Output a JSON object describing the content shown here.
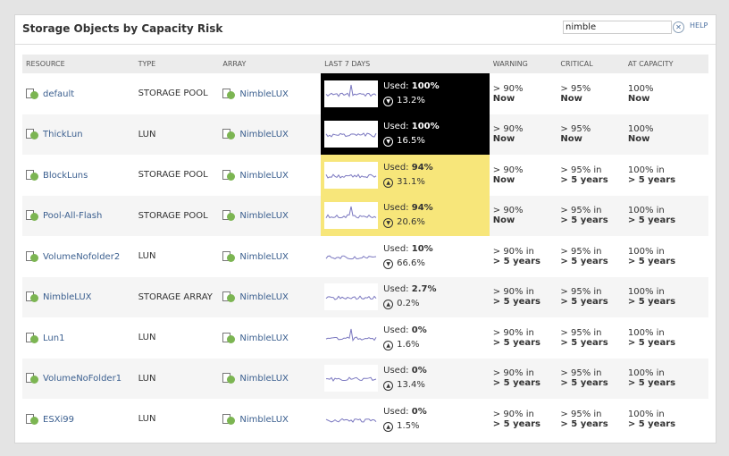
{
  "title": "Storage Objects by Capacity Risk",
  "search": {
    "value": "nimble"
  },
  "help": "HELP",
  "columns": [
    "RESOURCE",
    "TYPE",
    "ARRAY",
    "LAST 7 DAYS",
    "WARNING",
    "CRITICAL",
    "AT CAPACITY"
  ],
  "colors": {
    "critical": "#000000",
    "warning": "#f7e67a",
    "status_up": "#7cb552",
    "link": "#3b5f8f"
  },
  "rows": [
    {
      "resource": "default",
      "icon": "storage-pool-icon",
      "type": "STORAGE POOL",
      "array": "NimbleLUX",
      "used_label": "Used:",
      "used": "100%",
      "trend": "down",
      "change": "13.2%",
      "warning": [
        "> 90%",
        "Now"
      ],
      "critical": [
        "> 95%",
        "Now"
      ],
      "capacity": [
        "100%",
        "Now"
      ],
      "level": "critical"
    },
    {
      "resource": "ThickLun",
      "icon": "lun-icon",
      "type": "LUN",
      "array": "NimbleLUX",
      "used_label": "Used:",
      "used": "100%",
      "trend": "down",
      "change": "16.5%",
      "warning": [
        "> 90%",
        "Now"
      ],
      "critical": [
        "> 95%",
        "Now"
      ],
      "capacity": [
        "100%",
        "Now"
      ],
      "level": "critical"
    },
    {
      "resource": "BlockLuns",
      "icon": "storage-pool-icon",
      "type": "STORAGE POOL",
      "array": "NimbleLUX",
      "used_label": "Used:",
      "used": "94%",
      "trend": "up",
      "change": "31.1%",
      "warning": [
        "> 90%",
        "Now"
      ],
      "critical": [
        "> 95% in",
        "> 5 years"
      ],
      "capacity": [
        "100% in",
        "> 5 years"
      ],
      "level": "warning"
    },
    {
      "resource": "Pool-All-Flash",
      "icon": "storage-pool-icon",
      "type": "STORAGE POOL",
      "array": "NimbleLUX",
      "used_label": "Used:",
      "used": "94%",
      "trend": "down",
      "change": "20.6%",
      "warning": [
        "> 90%",
        "Now"
      ],
      "critical": [
        "> 95% in",
        "> 5 years"
      ],
      "capacity": [
        "100% in",
        "> 5 years"
      ],
      "level": "warning"
    },
    {
      "resource": "VolumeNofolder2",
      "icon": "lun-icon",
      "type": "LUN",
      "array": "NimbleLUX",
      "used_label": "Used:",
      "used": "10%",
      "trend": "down",
      "change": "66.6%",
      "warning": [
        "> 90% in",
        "> 5 years"
      ],
      "critical": [
        "> 95% in",
        "> 5 years"
      ],
      "capacity": [
        "100% in",
        "> 5 years"
      ],
      "level": "ok"
    },
    {
      "resource": "NimbleLUX",
      "icon": "storage-array-icon",
      "type": "STORAGE ARRAY",
      "array": "NimbleLUX",
      "used_label": "Used:",
      "used": "2.7%",
      "trend": "up",
      "change": "0.2%",
      "warning": [
        "> 90% in",
        "> 5 years"
      ],
      "critical": [
        "> 95% in",
        "> 5 years"
      ],
      "capacity": [
        "100% in",
        "> 5 years"
      ],
      "level": "ok"
    },
    {
      "resource": "Lun1",
      "icon": "lun-icon",
      "type": "LUN",
      "array": "NimbleLUX",
      "used_label": "Used:",
      "used": "0%",
      "trend": "up",
      "change": "1.6%",
      "warning": [
        "> 90% in",
        "> 5 years"
      ],
      "critical": [
        "> 95% in",
        "> 5 years"
      ],
      "capacity": [
        "100% in",
        "> 5 years"
      ],
      "level": "ok"
    },
    {
      "resource": "VolumeNoFolder1",
      "icon": "lun-icon",
      "type": "LUN",
      "array": "NimbleLUX",
      "used_label": "Used:",
      "used": "0%",
      "trend": "up",
      "change": "13.4%",
      "warning": [
        "> 90% in",
        "> 5 years"
      ],
      "critical": [
        "> 95% in",
        "> 5 years"
      ],
      "capacity": [
        "100% in",
        "> 5 years"
      ],
      "level": "ok"
    },
    {
      "resource": "ESXi99",
      "icon": "lun-icon",
      "type": "LUN",
      "array": "NimbleLUX",
      "used_label": "Used:",
      "used": "0%",
      "trend": "up",
      "change": "1.5%",
      "warning": [
        "> 90% in",
        "> 5 years"
      ],
      "critical": [
        "> 95% in",
        "> 5 years"
      ],
      "capacity": [
        "100% in",
        "> 5 years"
      ],
      "level": "ok"
    }
  ]
}
